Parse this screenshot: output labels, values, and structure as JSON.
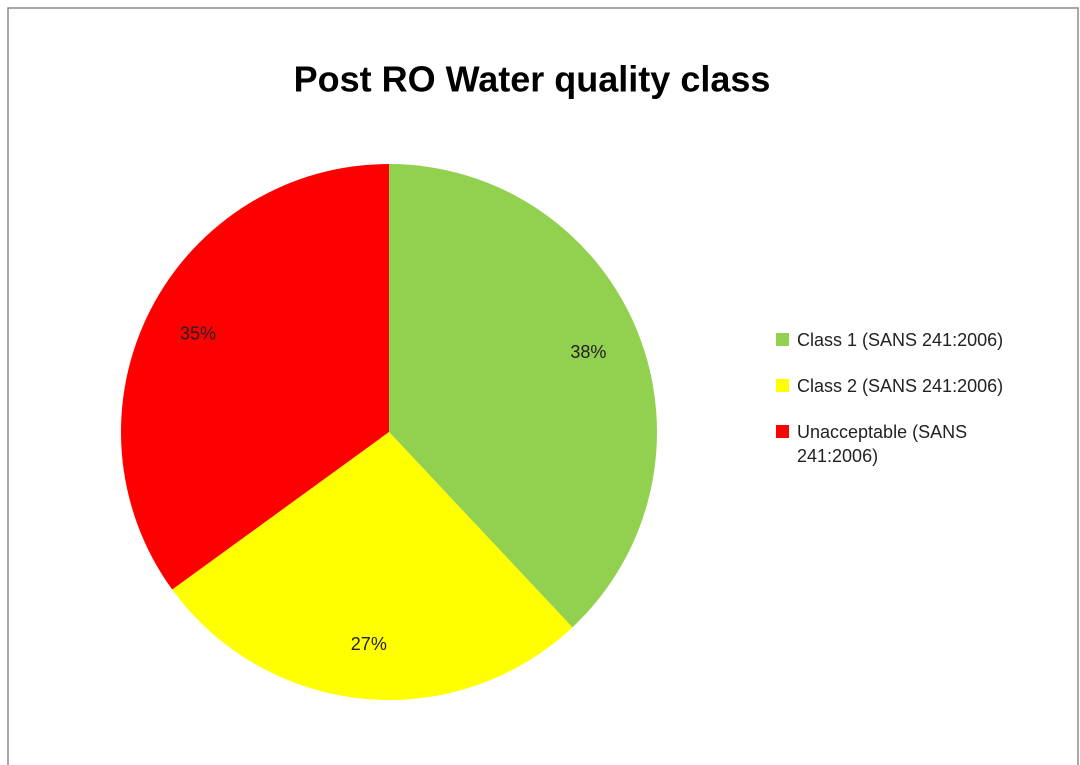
{
  "chart_data": {
    "type": "pie",
    "title": "Post RO Water quality class",
    "categories": [
      "Class 1 (SANS 241:2006)",
      "Class 2 (SANS 241:2006)",
      "Unacceptable (SANS 241:2006)"
    ],
    "values": [
      38,
      27,
      35
    ],
    "value_labels": [
      "38%",
      "27%",
      "35%"
    ],
    "colors": [
      "#92d050",
      "#ffff00",
      "#ff0000"
    ],
    "legend": "right"
  }
}
